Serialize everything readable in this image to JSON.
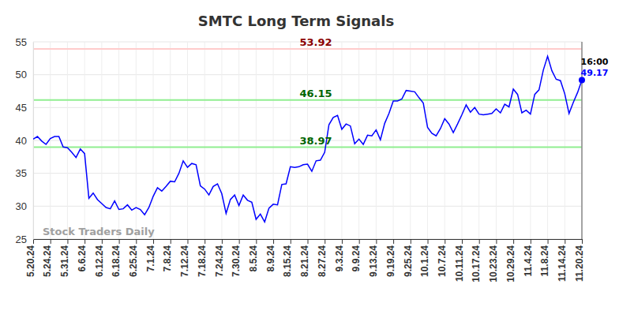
{
  "chart_data": {
    "type": "line",
    "title": "SMTC Long Term Signals",
    "watermark": "Stock Traders Daily",
    "end_time": "16:00",
    "color": "#0000ff",
    "grid": true,
    "ylim": [
      25,
      55
    ],
    "yticks": [
      25,
      30,
      35,
      40,
      45,
      50,
      55
    ],
    "reference_lines": [
      {
        "value": 53.92,
        "label": "53.92",
        "color": "#ffcccc",
        "label_color": "#8b0000"
      },
      {
        "value": 46.15,
        "label": "46.15",
        "color": "#90ee90",
        "label_color": "#006400"
      },
      {
        "value": 38.97,
        "label": "38.97",
        "color": "#90ee90",
        "label_color": "#006400"
      }
    ],
    "categories": [
      "5.20.24",
      null,
      null,
      null,
      "5.24.24",
      null,
      null,
      null,
      "5.31.24",
      null,
      null,
      null,
      "6.6.24",
      null,
      null,
      null,
      "6.12.24",
      null,
      null,
      null,
      "6.18.24",
      null,
      null,
      null,
      "6.25.24",
      null,
      null,
      null,
      "7.1.24",
      null,
      null,
      null,
      "7.8.24",
      null,
      null,
      null,
      "7.12.24",
      null,
      null,
      null,
      "7.18.24",
      null,
      null,
      null,
      "7.24.24",
      null,
      null,
      null,
      "7.30.24",
      null,
      null,
      null,
      "8.5.24",
      null,
      null,
      null,
      "8.9.24",
      null,
      null,
      null,
      "8.15.24",
      null,
      null,
      null,
      "8.21.24",
      null,
      null,
      null,
      "8.27.24",
      null,
      null,
      null,
      "9.3.24",
      null,
      null,
      null,
      "9.9.24",
      null,
      null,
      null,
      "9.13.24",
      null,
      null,
      null,
      "9.19.24",
      null,
      null,
      null,
      "9.25.24",
      null,
      null,
      null,
      "10.1.24",
      null,
      null,
      null,
      "10.7.24",
      null,
      null,
      null,
      "10.11.24",
      null,
      null,
      null,
      "10.17.24",
      null,
      null,
      null,
      "10.23.24",
      null,
      null,
      null,
      "10.29.24",
      null,
      null,
      null,
      "11.4.24",
      null,
      null,
      null,
      "11.8.24",
      null,
      null,
      null,
      "11.14.24",
      null,
      null,
      null,
      "11.20.24"
    ],
    "values": [
      40.2,
      40.6,
      39.9,
      39.4,
      40.3,
      40.6,
      40.6,
      39.0,
      38.9,
      38.2,
      37.4,
      38.7,
      38.0,
      31.2,
      32.0,
      31.0,
      30.4,
      29.8,
      29.6,
      30.8,
      29.5,
      29.6,
      30.2,
      29.4,
      29.8,
      29.5,
      28.7,
      29.8,
      31.5,
      32.8,
      32.3,
      33.0,
      33.8,
      33.7,
      35.0,
      36.9,
      35.9,
      36.5,
      36.3,
      33.1,
      32.6,
      31.7,
      33.0,
      33.4,
      31.9,
      28.9,
      31.0,
      31.7,
      30.1,
      31.7,
      30.9,
      30.6,
      28.0,
      28.8,
      27.6,
      29.7,
      30.3,
      30.2,
      33.3,
      33.4,
      36.0,
      35.9,
      36.0,
      36.3,
      36.4,
      35.3,
      36.9,
      37.0,
      38.2,
      42.4,
      43.5,
      43.8,
      41.7,
      42.5,
      42.2,
      39.5,
      40.2,
      39.4,
      40.8,
      40.7,
      41.6,
      40.1,
      42.6,
      44.1,
      46.0,
      46.0,
      46.3,
      47.6,
      47.5,
      47.4,
      46.5,
      45.7,
      42.0,
      41.1,
      40.7,
      41.8,
      43.3,
      42.5,
      41.2,
      42.5,
      43.9,
      45.4,
      44.3,
      45.0,
      44.0,
      43.9,
      44.0,
      44.1,
      44.8,
      44.2,
      45.5,
      45.1,
      47.8,
      47.0,
      44.2,
      44.6,
      44.0,
      47.0,
      47.7,
      50.7,
      52.8,
      50.6,
      49.3,
      49.1,
      47.1,
      44.1,
      45.8,
      47.3,
      49.17
    ]
  }
}
